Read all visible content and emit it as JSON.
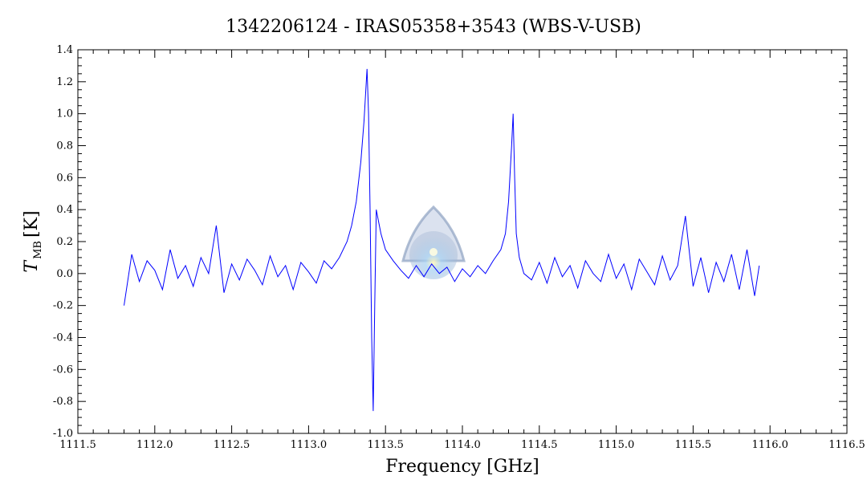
{
  "chart_data": {
    "type": "line",
    "title": "1342206124 - IRAS05358+3543 (WBS-V-USB)",
    "xlabel": "Frequency [GHz]",
    "ylabel_main": "T",
    "ylabel_sub": "MB",
    "ylabel_unit": "[K]",
    "xlim": [
      1111.5,
      1116.5
    ],
    "ylim": [
      -1.0,
      1.4
    ],
    "xticks": [
      1111.5,
      1112.0,
      1112.5,
      1113.0,
      1113.5,
      1114.0,
      1114.5,
      1115.0,
      1115.5,
      1116.0,
      1116.5
    ],
    "xtick_labels": [
      "1111.5",
      "1112.0",
      "1112.5",
      "1113.0",
      "1113.5",
      "1114.0",
      "1114.5",
      "1115.0",
      "1115.5",
      "1116.0",
      "1116.5"
    ],
    "yticks": [
      1.4,
      1.2,
      1.0,
      0.8,
      0.6,
      0.4,
      0.2,
      0.0,
      -0.2,
      -0.4,
      -0.6,
      -0.8,
      -1.0
    ],
    "ytick_labels": [
      "1.4",
      "1.2",
      "1.0",
      "0.8",
      "0.6",
      "0.4",
      "0.2",
      "0.0",
      "-0.2",
      "-0.4",
      "-0.6",
      "-0.8",
      "-1.0"
    ],
    "grid": false,
    "series": [
      {
        "color": "#0000ff",
        "x": [
          1111.8,
          1111.85,
          1111.9,
          1111.95,
          1112.0,
          1112.05,
          1112.1,
          1112.15,
          1112.2,
          1112.25,
          1112.3,
          1112.35,
          1112.4,
          1112.45,
          1112.5,
          1112.55,
          1112.6,
          1112.65,
          1112.7,
          1112.75,
          1112.8,
          1112.85,
          1112.9,
          1112.95,
          1113.0,
          1113.05,
          1113.1,
          1113.15,
          1113.2,
          1113.25,
          1113.28,
          1113.31,
          1113.34,
          1113.36,
          1113.38,
          1113.39,
          1113.4,
          1113.41,
          1113.42,
          1113.43,
          1113.44,
          1113.45,
          1113.47,
          1113.5,
          1113.55,
          1113.6,
          1113.65,
          1113.7,
          1113.75,
          1113.8,
          1113.85,
          1113.9,
          1113.95,
          1114.0,
          1114.05,
          1114.1,
          1114.15,
          1114.2,
          1114.25,
          1114.28,
          1114.3,
          1114.32,
          1114.33,
          1114.34,
          1114.35,
          1114.37,
          1114.4,
          1114.45,
          1114.5,
          1114.55,
          1114.6,
          1114.65,
          1114.7,
          1114.75,
          1114.8,
          1114.85,
          1114.9,
          1114.95,
          1115.0,
          1115.05,
          1115.1,
          1115.15,
          1115.2,
          1115.25,
          1115.3,
          1115.35,
          1115.4,
          1115.45,
          1115.5,
          1115.55,
          1115.6,
          1115.65,
          1115.7,
          1115.75,
          1115.8,
          1115.85,
          1115.9,
          1115.93
        ],
        "y": [
          -0.2,
          0.12,
          -0.05,
          0.08,
          0.02,
          -0.1,
          0.15,
          -0.03,
          0.05,
          -0.08,
          0.1,
          0.0,
          0.3,
          -0.12,
          0.06,
          -0.04,
          0.09,
          0.02,
          -0.07,
          0.11,
          -0.02,
          0.05,
          -0.1,
          0.07,
          0.01,
          -0.06,
          0.08,
          0.03,
          0.1,
          0.2,
          0.3,
          0.45,
          0.7,
          0.95,
          1.28,
          1.0,
          0.4,
          -0.4,
          -0.86,
          -0.2,
          0.4,
          0.35,
          0.25,
          0.15,
          0.08,
          0.02,
          -0.03,
          0.05,
          -0.02,
          0.06,
          0.0,
          0.04,
          -0.05,
          0.03,
          -0.02,
          0.05,
          0.0,
          0.08,
          0.15,
          0.25,
          0.45,
          0.8,
          1.0,
          0.6,
          0.25,
          0.1,
          0.0,
          -0.04,
          0.07,
          -0.06,
          0.1,
          -0.02,
          0.05,
          -0.09,
          0.08,
          0.0,
          -0.05,
          0.12,
          -0.03,
          0.06,
          -0.1,
          0.09,
          0.01,
          -0.07,
          0.11,
          -0.04,
          0.05,
          0.36,
          -0.08,
          0.1,
          -0.12,
          0.07,
          -0.05,
          0.12,
          -0.1,
          0.15,
          -0.14,
          0.05
        ]
      }
    ]
  }
}
